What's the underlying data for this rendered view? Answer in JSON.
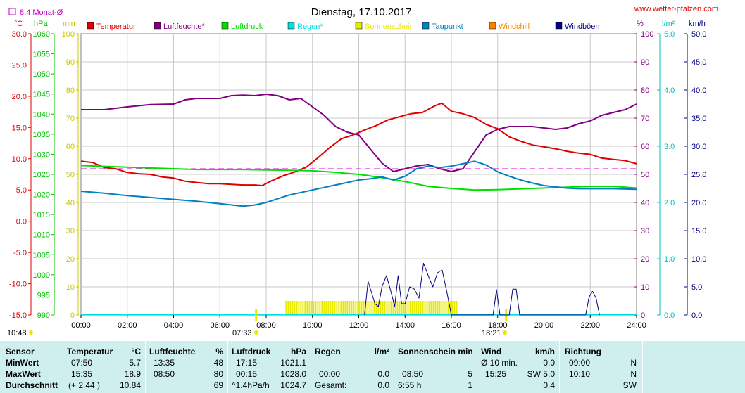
{
  "title": "Dienstag, 17.10.2017",
  "website": "www.wetter-pfalzen.com",
  "monthly_avg_label": "8.4 Monat-Ø",
  "units": {
    "temp": "°C",
    "pressure": "hPa",
    "sunshine": "min",
    "humidity": "%",
    "rain": "l/m²",
    "wind": "km/h"
  },
  "legend": [
    {
      "label": "Temperatur",
      "color": "#e00000"
    },
    {
      "label": "Luftfeuchte*",
      "color": "#800080"
    },
    {
      "label": "Luftdruck",
      "color": "#00e000"
    },
    {
      "label": "Regen*",
      "color": "#00e0e0"
    },
    {
      "label": "Sonnenschein",
      "color": "#e8e800"
    },
    {
      "label": "Taupunkt",
      "color": "#0080c0"
    },
    {
      "label": "Windchill",
      "color": "#ff8000"
    },
    {
      "label": "Windböen",
      "color": "#000080"
    }
  ],
  "axes": {
    "temp_ticks": [
      "30.0",
      "25.0",
      "20.0",
      "15.0",
      "10.0",
      "5.0",
      "0.0",
      "-5.0",
      "-10.0",
      "-15.0"
    ],
    "pressure_ticks": [
      "1060",
      "1055",
      "1050",
      "1045",
      "1040",
      "1035",
      "1030",
      "1025",
      "1020",
      "1015",
      "1010",
      "1005",
      "1000",
      "995",
      "990"
    ],
    "sunshine_ticks": [
      "100",
      "90",
      "80",
      "70",
      "60",
      "50",
      "40",
      "30",
      "20",
      "10",
      "0"
    ],
    "humidity_ticks": [
      "100",
      "90",
      "80",
      "70",
      "60",
      "50",
      "40",
      "30",
      "20",
      "10",
      "0"
    ],
    "rain_ticks": [
      "5.0",
      "4.0",
      "3.0",
      "2.0",
      "1.0",
      "0.0"
    ],
    "wind_ticks": [
      "50.0",
      "45.0",
      "40.0",
      "35.0",
      "30.0",
      "25.0",
      "20.0",
      "15.0",
      "10.0",
      "5.0",
      "0.0"
    ],
    "time_ticks": [
      "00:00",
      "02:00",
      "04:00",
      "06:00",
      "08:00",
      "10:00",
      "12:00",
      "14:00",
      "16:00",
      "18:00",
      "20:00",
      "22:00",
      "24:00"
    ]
  },
  "markers": {
    "sunrise": "07:33",
    "sunset": "18:21",
    "daylength": "10:48"
  },
  "chart_data": {
    "type": "line",
    "title": "Dienstag, 17.10.2017",
    "x_unit": "hours",
    "monthly_avg_temp": 8.4,
    "ranges": {
      "temp": [
        -15,
        30
      ],
      "pressure": [
        990,
        1060
      ],
      "humidity": [
        0,
        100
      ],
      "sunshine": [
        0,
        100
      ],
      "rain": [
        0,
        5
      ],
      "wind": [
        0,
        50
      ]
    },
    "series": [
      {
        "name": "Temperatur",
        "axis": "temp",
        "color": "#e00000",
        "points": [
          [
            0,
            9.6
          ],
          [
            0.5,
            9.4
          ],
          [
            1,
            8.6
          ],
          [
            1.5,
            8.4
          ],
          [
            2,
            7.8
          ],
          [
            2.5,
            7.6
          ],
          [
            3,
            7.5
          ],
          [
            3.5,
            7.1
          ],
          [
            4,
            6.9
          ],
          [
            4.5,
            6.4
          ],
          [
            5,
            6.2
          ],
          [
            5.5,
            6.0
          ],
          [
            6,
            6.0
          ],
          [
            6.5,
            5.9
          ],
          [
            7,
            5.8
          ],
          [
            7.5,
            5.8
          ],
          [
            7.83,
            5.7
          ],
          [
            8.25,
            6.5
          ],
          [
            8.75,
            7.3
          ],
          [
            9.25,
            7.9
          ],
          [
            9.75,
            8.7
          ],
          [
            10.25,
            10.2
          ],
          [
            10.75,
            11.8
          ],
          [
            11.25,
            13.2
          ],
          [
            11.75,
            13.8
          ],
          [
            12.25,
            14.6
          ],
          [
            12.75,
            15.3
          ],
          [
            13.25,
            16.2
          ],
          [
            13.75,
            16.7
          ],
          [
            14.25,
            17.2
          ],
          [
            14.75,
            17.4
          ],
          [
            15.25,
            18.4
          ],
          [
            15.583,
            18.9
          ],
          [
            16,
            17.6
          ],
          [
            16.5,
            17.2
          ],
          [
            17,
            16.6
          ],
          [
            17.5,
            15.5
          ],
          [
            18,
            14.8
          ],
          [
            18.5,
            13.5
          ],
          [
            19,
            12.8
          ],
          [
            19.5,
            12.2
          ],
          [
            20,
            11.9
          ],
          [
            20.5,
            11.6
          ],
          [
            21,
            11.2
          ],
          [
            21.5,
            10.9
          ],
          [
            22,
            10.7
          ],
          [
            22.5,
            10.1
          ],
          [
            23,
            9.9
          ],
          [
            23.5,
            9.7
          ],
          [
            24,
            9.2
          ]
        ]
      },
      {
        "name": "Luftfeuchte*",
        "axis": "humidity",
        "color": "#800080",
        "points": [
          [
            0,
            73
          ],
          [
            1,
            73
          ],
          [
            2,
            74
          ],
          [
            3,
            74.8
          ],
          [
            4,
            75
          ],
          [
            4.5,
            76.5
          ],
          [
            5,
            77
          ],
          [
            6,
            77
          ],
          [
            6.5,
            78
          ],
          [
            7,
            78.2
          ],
          [
            7.5,
            78
          ],
          [
            8,
            78.5
          ],
          [
            8.5,
            78
          ],
          [
            9,
            76.5
          ],
          [
            9.5,
            77
          ],
          [
            10,
            74
          ],
          [
            10.5,
            71
          ],
          [
            11,
            67
          ],
          [
            11.5,
            65
          ],
          [
            12,
            64
          ],
          [
            12.5,
            59
          ],
          [
            13,
            54
          ],
          [
            13.5,
            51
          ],
          [
            14,
            52
          ],
          [
            14.5,
            53
          ],
          [
            15,
            53.5
          ],
          [
            15.5,
            52
          ],
          [
            16,
            51
          ],
          [
            16.5,
            52
          ],
          [
            17,
            58
          ],
          [
            17.5,
            64
          ],
          [
            18,
            66
          ],
          [
            18.5,
            67
          ],
          [
            19,
            67
          ],
          [
            19.5,
            67
          ],
          [
            20,
            66.5
          ],
          [
            20.5,
            66
          ],
          [
            21,
            66.5
          ],
          [
            21.5,
            68
          ],
          [
            22,
            69
          ],
          [
            22.5,
            71
          ],
          [
            23,
            72
          ],
          [
            23.5,
            73
          ],
          [
            24,
            75
          ]
        ]
      },
      {
        "name": "Luftdruck",
        "axis": "pressure",
        "color": "#00e000",
        "points": [
          [
            0,
            1027.2
          ],
          [
            1,
            1027.0
          ],
          [
            2,
            1026.8
          ],
          [
            3,
            1026.6
          ],
          [
            4,
            1026.4
          ],
          [
            5,
            1026.2
          ],
          [
            6,
            1026.2
          ],
          [
            7,
            1026.2
          ],
          [
            8,
            1026.1
          ],
          [
            9,
            1026.0
          ],
          [
            10,
            1025.9
          ],
          [
            11,
            1025.5
          ],
          [
            12,
            1025.0
          ],
          [
            13,
            1024.2
          ],
          [
            14,
            1023.2
          ],
          [
            15,
            1022.0
          ],
          [
            16,
            1021.5
          ],
          [
            17,
            1021.1
          ],
          [
            18,
            1021.2
          ],
          [
            19,
            1021.4
          ],
          [
            20,
            1021.6
          ],
          [
            21,
            1021.8
          ],
          [
            22,
            1022.0
          ],
          [
            23,
            1022.0
          ],
          [
            24,
            1021.6
          ]
        ]
      },
      {
        "name": "Taupunkt",
        "axis": "temp",
        "color": "#0080c0",
        "points": [
          [
            0,
            4.8
          ],
          [
            1,
            4.5
          ],
          [
            2,
            4.1
          ],
          [
            3,
            3.8
          ],
          [
            4,
            3.5
          ],
          [
            5,
            3.2
          ],
          [
            6,
            2.8
          ],
          [
            7,
            2.4
          ],
          [
            7.5,
            2.6
          ],
          [
            8,
            3.0
          ],
          [
            8.5,
            3.6
          ],
          [
            9,
            4.2
          ],
          [
            9.5,
            4.6
          ],
          [
            10,
            5.0
          ],
          [
            10.5,
            5.4
          ],
          [
            11,
            5.8
          ],
          [
            11.5,
            6.2
          ],
          [
            12,
            6.6
          ],
          [
            12.5,
            6.8
          ],
          [
            13,
            7.1
          ],
          [
            13.5,
            6.6
          ],
          [
            14,
            7.2
          ],
          [
            14.5,
            8.4
          ],
          [
            15,
            8.8
          ],
          [
            15.5,
            8.6
          ],
          [
            16,
            8.8
          ],
          [
            16.5,
            9.2
          ],
          [
            17,
            9.6
          ],
          [
            17.5,
            9.0
          ],
          [
            18,
            7.9
          ],
          [
            18.5,
            7.2
          ],
          [
            19,
            6.6
          ],
          [
            19.5,
            6.1
          ],
          [
            20,
            5.7
          ],
          [
            20.5,
            5.5
          ],
          [
            21,
            5.3
          ],
          [
            21.5,
            5.2
          ],
          [
            22,
            5.2
          ],
          [
            22.5,
            5.2
          ],
          [
            23,
            5.2
          ],
          [
            24,
            5.1
          ]
        ]
      },
      {
        "name": "Windböen",
        "axis": "wind",
        "color": "#000080",
        "points": [
          [
            12.25,
            0
          ],
          [
            12.4,
            6
          ],
          [
            12.55,
            4
          ],
          [
            12.7,
            2
          ],
          [
            12.85,
            1.5
          ],
          [
            13.0,
            5
          ],
          [
            13.2,
            7
          ],
          [
            13.4,
            4
          ],
          [
            13.55,
            1.5
          ],
          [
            13.7,
            7
          ],
          [
            13.85,
            2
          ],
          [
            14.0,
            2
          ],
          [
            14.2,
            5
          ],
          [
            14.4,
            4.6
          ],
          [
            14.6,
            3
          ],
          [
            14.8,
            9.2
          ],
          [
            15.0,
            7
          ],
          [
            15.2,
            5
          ],
          [
            15.4,
            7.5
          ],
          [
            15.6,
            8
          ],
          [
            15.8,
            4.2
          ],
          [
            16.0,
            0
          ],
          [
            17.8,
            0
          ],
          [
            17.95,
            4.5
          ],
          [
            18.1,
            0
          ],
          [
            18.5,
            0
          ],
          [
            18.65,
            4.6
          ],
          [
            18.8,
            4.6
          ],
          [
            18.95,
            0
          ],
          [
            21.8,
            0
          ],
          [
            21.95,
            3.2
          ],
          [
            22.1,
            4.2
          ],
          [
            22.25,
            3
          ],
          [
            22.4,
            0
          ]
        ]
      }
    ],
    "sunshine_intervals": [
      [
        8.833,
        12.0
      ],
      [
        12.0,
        16.25
      ]
    ]
  },
  "stats": {
    "headers": [
      "Sensor",
      "Temperatur",
      "°C",
      "Luftfeuchte",
      "%",
      "Luftdruck",
      "hPa",
      "Regen",
      "l/m²",
      "Sonnenschein min",
      "Wind",
      "km/h",
      "Richtung"
    ],
    "rows": [
      {
        "label": "MinWert",
        "temp_time": "07:50",
        "temp_val": "5.7",
        "hum_time": "13:35",
        "hum_val": "48",
        "press_time": "17:15",
        "press_val": "1021.1",
        "rain_time": "",
        "rain_val": "",
        "sun_time": "",
        "sun_val": "",
        "wind_time": "Ø 10 min.",
        "wind_val": "0.0",
        "dir_time": "09:00",
        "dir_val": "N"
      },
      {
        "label": "MaxWert",
        "temp_time": "15:35",
        "temp_val": "18.9",
        "hum_time": "08:50",
        "hum_val": "80",
        "press_time": "00:15",
        "press_val": "1028.0",
        "rain_time": "00:00",
        "rain_val": "0.0",
        "sun_time": "08:50",
        "sun_val": "5",
        "wind_time": "15:25",
        "wind_val": "SW 5.0",
        "dir_time": "10:10",
        "dir_val": "N"
      },
      {
        "label": "Durchschnitt",
        "temp_time": "(+ 2.44 )",
        "temp_val": "10.84",
        "hum_time": "",
        "hum_val": "69",
        "press_time": "^1.4hPa/h",
        "press_val": "1024.7",
        "rain_time": "Gesamt:",
        "rain_val": "0.0",
        "sun_time": "6:55 h",
        "sun_val": "1",
        "wind_time": "",
        "wind_val": "0.4",
        "dir_time": "",
        "dir_val": "SW"
      }
    ]
  }
}
